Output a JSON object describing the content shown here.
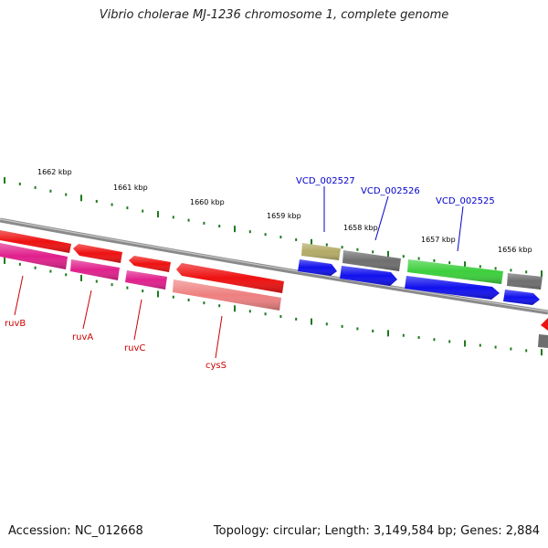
{
  "title": "Vibrio cholerae MJ-1236 chromosome 1, complete genome",
  "footer": {
    "accession": "Accession: NC_012668",
    "summary": "Topology: circular; Length: 3,149,584 bp; Genes: 2,884"
  },
  "scale_labels": [
    "1662 kbp",
    "1661 kbp",
    "1660 kbp",
    "1659 kbp",
    "1658 kbp",
    "1657 kbp",
    "1656 kbp"
  ],
  "gene_labels": [
    {
      "text": "ruvB",
      "color": "#cc0000"
    },
    {
      "text": "ruvA",
      "color": "#cc0000"
    },
    {
      "text": "ruvC",
      "color": "#cc0000"
    },
    {
      "text": "cysS",
      "color": "#cc0000"
    },
    {
      "text": "VCD_002527",
      "color": "#0000cc"
    },
    {
      "text": "VCD_002526",
      "color": "#0000cc"
    },
    {
      "text": "VCD_002525",
      "color": "#0000cc"
    }
  ],
  "colors": {
    "backbone": "#8a8a8a",
    "ticks": "#1e7a1e",
    "red": "#ee1111",
    "pink": "#e0208c",
    "salmon": "#ee8080",
    "olive": "#b3aa66",
    "grey": "#6e6e6e",
    "green": "#3bcf3b",
    "blue": "#1010ee"
  }
}
